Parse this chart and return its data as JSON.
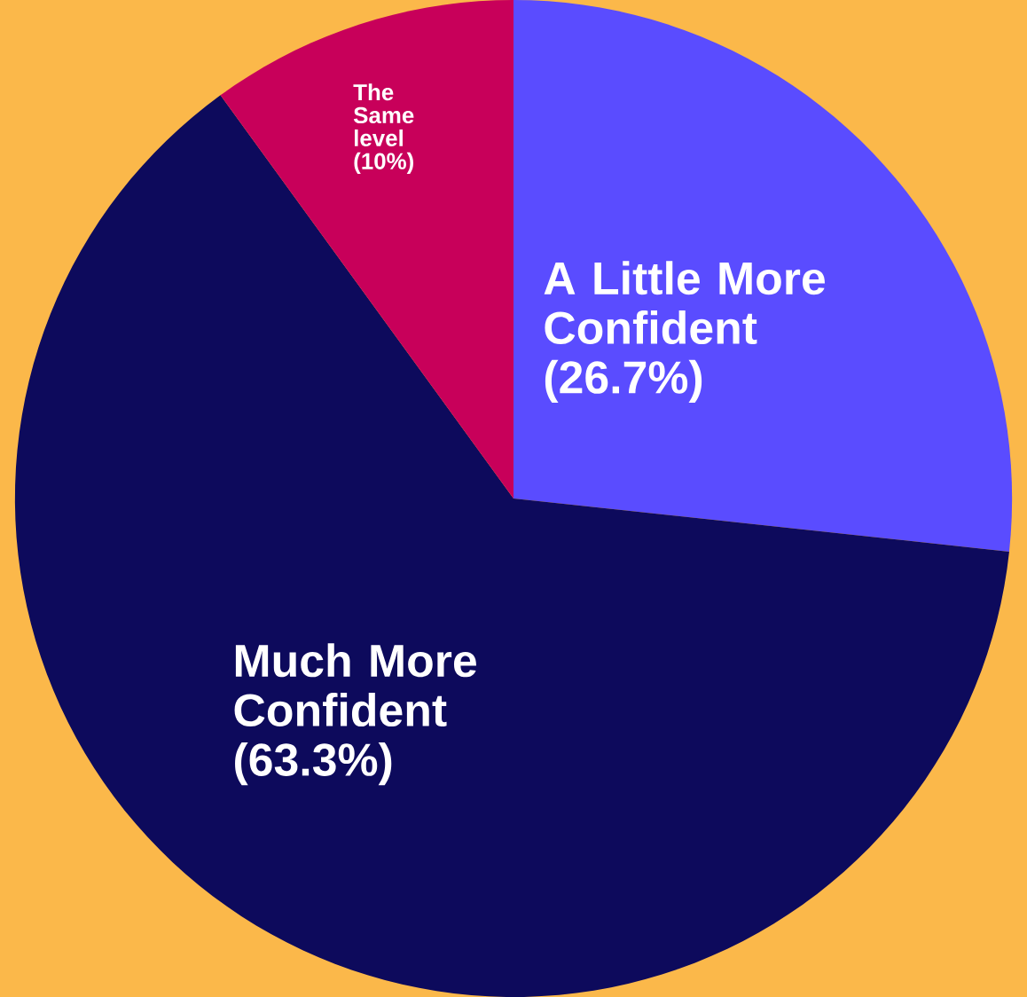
{
  "chart_data": {
    "type": "pie",
    "categories": [
      "A Little More Confident",
      "Much More Confident",
      "The Same level"
    ],
    "values": [
      26.7,
      63.3,
      10
    ],
    "value_labels": [
      "(26.7%)",
      "(63.3%)",
      "(10%)"
    ],
    "colors": [
      "#5a4cff",
      "#0d0a5c",
      "#c8005a"
    ]
  }
}
